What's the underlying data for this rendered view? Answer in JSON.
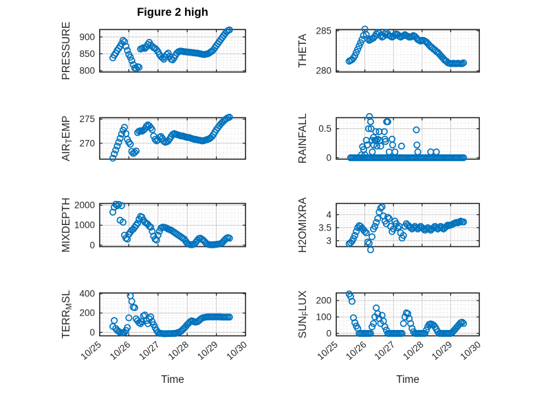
{
  "figure": {
    "title": "Figure 2 high",
    "xlabel": "Time",
    "marker_color": "#0072BD",
    "axis_color": "#1a1a1a",
    "label_color": "#262626",
    "grid_major_color": "#cccccc",
    "grid_minor_color": "#d9d9d9",
    "x_axis": {
      "lim": [
        0,
        5
      ],
      "tick_labels": [
        "10/25",
        "10/26",
        "10/27",
        "10/28",
        "10/29",
        "10/30"
      ],
      "ticks": [
        0,
        1,
        2,
        3,
        4,
        5
      ],
      "minor_step": 0.125,
      "tick_label_rotation_deg": -40
    }
  },
  "chart_data": [
    {
      "type": "scatter",
      "name": "PRESSURE",
      "row": 0,
      "col": 0,
      "ylabel_parts": [
        {
          "text": "PRESSURE",
          "sub": false
        }
      ],
      "ytick_labels": [
        "800",
        "850",
        "900"
      ],
      "yticks": [
        800,
        850,
        900
      ],
      "ylim": [
        796,
        922
      ],
      "y_minor_step": 10,
      "x_start": 0.45,
      "x_step": 0.05,
      "values": [
        838,
        846,
        852,
        860,
        866,
        872,
        880,
        890,
        886,
        872,
        860,
        848,
        840,
        830,
        818,
        808,
        806,
        812,
        810,
        864,
        866,
        868,
        866,
        870,
        878,
        884,
        876,
        872,
        868,
        866,
        862,
        856,
        848,
        842,
        838,
        834,
        840,
        848,
        852,
        842,
        834,
        832,
        838,
        846,
        852,
        856,
        858,
        858,
        857,
        856,
        856,
        855,
        855,
        854,
        854,
        853,
        853,
        852,
        852,
        851,
        850,
        849,
        848,
        848,
        849,
        850,
        852,
        855,
        858,
        862,
        868,
        874,
        880,
        886,
        892,
        898,
        904,
        910,
        915,
        919,
        921
      ]
    },
    {
      "type": "scatter",
      "name": "THETA",
      "row": 0,
      "col": 1,
      "ylabel_parts": [
        {
          "text": "THETA",
          "sub": false
        }
      ],
      "ytick_labels": [
        "280",
        "285"
      ],
      "yticks": [
        280,
        285
      ],
      "ylim": [
        279.85,
        285.15
      ],
      "y_minor_step": 1,
      "x_start": 0.45,
      "x_step": 0.05,
      "values": [
        281.2,
        281.3,
        281.4,
        281.6,
        281.9,
        282.3,
        282.7,
        283.1,
        283.5,
        283.9,
        284.4,
        285.2,
        284.5,
        284.0,
        283.8,
        283.9,
        284.0,
        284.1,
        284.3,
        284.6,
        284.8,
        284.7,
        284.4,
        284.2,
        284.3,
        284.6,
        284.8,
        284.6,
        284.4,
        284.3,
        284.2,
        284.3,
        284.5,
        284.6,
        284.5,
        284.3,
        284.2,
        284.3,
        284.4,
        284.5,
        284.4,
        284.3,
        284.2,
        284.2,
        284.3,
        284.4,
        284.3,
        284.1,
        283.9,
        283.8,
        283.7,
        283.8,
        283.8,
        283.7,
        283.6,
        283.4,
        283.2,
        283.0,
        282.9,
        282.7,
        282.6,
        282.4,
        282.3,
        282.1,
        281.9,
        281.7,
        281.5,
        281.3,
        281.2,
        281.0,
        280.95,
        280.9,
        280.9,
        280.95,
        280.9,
        280.9,
        280.95,
        280.9,
        280.9,
        280.9,
        281.0
      ]
    },
    {
      "type": "scatter",
      "name": "AIR_TEMP",
      "row": 1,
      "col": 0,
      "ylabel_parts": [
        {
          "text": "AIR",
          "sub": false
        },
        {
          "text": "T",
          "sub": true
        },
        {
          "text": "EMP",
          "sub": false
        }
      ],
      "ytick_labels": [
        "270",
        "275"
      ],
      "yticks": [
        270,
        275
      ],
      "ylim": [
        266.7,
        275.3
      ],
      "y_minor_step": 1,
      "x_start": 0.45,
      "x_step": 0.05,
      "values": [
        266.9,
        267.8,
        268.6,
        269.4,
        270.2,
        271.0,
        271.9,
        272.7,
        273.3,
        272.0,
        270.8,
        270.2,
        269.8,
        268.3,
        267.9,
        268.1,
        268.4,
        272.2,
        272.5,
        272.6,
        272.5,
        272.7,
        273.0,
        273.5,
        273.8,
        273.6,
        273.2,
        272.8,
        271.5,
        270.8,
        270.5,
        270.7,
        271.2,
        271.4,
        271.0,
        270.4,
        270.2,
        270.3,
        270.5,
        270.9,
        271.4,
        271.8,
        272.0,
        271.9,
        271.8,
        271.7,
        271.6,
        271.5,
        271.5,
        271.4,
        271.3,
        271.2,
        271.2,
        271.1,
        271.0,
        270.9,
        270.8,
        270.8,
        270.7,
        270.6,
        270.6,
        270.5,
        270.5,
        270.6,
        270.7,
        270.8,
        270.9,
        271.1,
        271.4,
        271.8,
        272.3,
        272.8,
        273.2,
        273.6,
        274.0,
        274.3,
        274.6,
        274.9,
        275.1,
        275.3,
        275.4
      ]
    },
    {
      "type": "scatter",
      "name": "RAINFALL",
      "row": 1,
      "col": 1,
      "ylabel_parts": [
        {
          "text": "RAINFALL",
          "sub": false
        }
      ],
      "ytick_labels": [
        "0",
        "0.5"
      ],
      "yticks": [
        0,
        0.5
      ],
      "ylim": [
        -0.025,
        0.69
      ],
      "y_minor_step": 0.1,
      "x_start": 0.5,
      "x_step": 0.05,
      "values": [
        0,
        0,
        0,
        0,
        0,
        0,
        0,
        0,
        0,
        0,
        0,
        0,
        0,
        0,
        0,
        0,
        0,
        0,
        0,
        0,
        0,
        0,
        0,
        0,
        0,
        0,
        0,
        0,
        0,
        0,
        0,
        0,
        0,
        0,
        0,
        0,
        0,
        0,
        0,
        0,
        0,
        0,
        0,
        0,
        0,
        0,
        0,
        0,
        0,
        0,
        0,
        0,
        0,
        0,
        0,
        0,
        0,
        0,
        0,
        0,
        0,
        0,
        0,
        0,
        0,
        0,
        0,
        0,
        0,
        0,
        0,
        0,
        0,
        0,
        0,
        0,
        0,
        0,
        0,
        0
      ],
      "extra_points": [
        [
          0.88,
          0.05
        ],
        [
          0.92,
          0.19
        ],
        [
          0.96,
          0.14
        ],
        [
          1.0,
          0.05
        ],
        [
          1.05,
          0.3
        ],
        [
          1.08,
          0.22
        ],
        [
          1.13,
          0.5
        ],
        [
          1.16,
          0.71
        ],
        [
          1.2,
          0.62
        ],
        [
          1.22,
          0.5
        ],
        [
          1.25,
          0.3
        ],
        [
          1.26,
          0.1
        ],
        [
          1.3,
          0.35
        ],
        [
          1.31,
          0.22
        ],
        [
          1.35,
          0.3
        ],
        [
          1.38,
          0.45
        ],
        [
          1.4,
          0.3
        ],
        [
          1.42,
          0.2
        ],
        [
          1.45,
          0.32
        ],
        [
          1.5,
          0.45
        ],
        [
          1.52,
          0.3
        ],
        [
          1.55,
          0.2
        ],
        [
          1.68,
          0.45
        ],
        [
          1.7,
          0.32
        ],
        [
          1.72,
          0.28
        ],
        [
          1.76,
          0.62
        ],
        [
          1.8,
          0.62
        ],
        [
          1.85,
          0.1
        ],
        [
          1.95,
          0.32
        ],
        [
          1.97,
          0.22
        ],
        [
          2.05,
          0.1
        ],
        [
          2.28,
          0.2
        ],
        [
          2.8,
          0.48
        ],
        [
          2.82,
          0.22
        ],
        [
          2.85,
          0.1
        ],
        [
          3.3,
          0.1
        ],
        [
          3.5,
          0.1
        ]
      ]
    },
    {
      "type": "scatter",
      "name": "MIXDEPTH",
      "row": 2,
      "col": 0,
      "ylabel_parts": [
        {
          "text": "MIXDEPTH",
          "sub": false
        }
      ],
      "ytick_labels": [
        "0",
        "1000",
        "2000"
      ],
      "yticks": [
        0,
        1000,
        2000
      ],
      "ylim": [
        -75,
        2090
      ],
      "y_minor_step": 200,
      "x_start": 0.45,
      "x_step": 0.05,
      "values": [
        1650,
        1900,
        2050,
        1975,
        2040,
        1250,
        1980,
        1150,
        500,
        350,
        300,
        550,
        650,
        750,
        800,
        900,
        1000,
        1100,
        1300,
        1440,
        1400,
        1250,
        1150,
        1100,
        1050,
        950,
        900,
        700,
        450,
        300,
        250,
        500,
        700,
        850,
        900,
        900,
        880,
        850,
        800,
        780,
        750,
        700,
        650,
        600,
        550,
        500,
        450,
        400,
        350,
        300,
        200,
        100,
        50,
        30,
        20,
        30,
        60,
        150,
        250,
        330,
        350,
        300,
        250,
        180,
        100,
        50,
        30,
        20,
        20,
        20,
        30,
        40,
        50,
        60,
        80,
        120,
        200,
        280,
        350,
        380,
        350
      ]
    },
    {
      "type": "scatter",
      "name": "H2OMIXRA",
      "row": 2,
      "col": 1,
      "ylabel_parts": [
        {
          "text": "H2OMIXRA",
          "sub": false
        }
      ],
      "ytick_labels": [
        "3",
        "3.5",
        "4"
      ],
      "yticks": [
        3,
        3.5,
        4
      ],
      "ylim": [
        2.77,
        4.43
      ],
      "y_minor_step": 0.1,
      "x_start": 0.45,
      "x_step": 0.05,
      "values": [
        2.88,
        2.92,
        2.98,
        3.08,
        3.2,
        3.35,
        3.5,
        3.58,
        3.55,
        3.48,
        3.42,
        3.35,
        3.3,
        2.95,
        2.9,
        2.65,
        3.15,
        3.45,
        3.55,
        3.7,
        3.85,
        4.1,
        4.25,
        4.3,
        3.95,
        3.75,
        3.65,
        3.9,
        3.85,
        3.55,
        3.35,
        3.45,
        3.75,
        3.65,
        3.5,
        3.55,
        3.3,
        3.1,
        3.2,
        3.55,
        3.65,
        3.6,
        3.55,
        3.5,
        3.45,
        3.5,
        3.55,
        3.5,
        3.45,
        3.5,
        3.55,
        3.5,
        3.45,
        3.4,
        3.45,
        3.5,
        3.45,
        3.4,
        3.45,
        3.5,
        3.55,
        3.5,
        3.45,
        3.5,
        3.55,
        3.5,
        3.45,
        3.5,
        3.55,
        3.6,
        3.58,
        3.6,
        3.62,
        3.65,
        3.68,
        3.7,
        3.68,
        3.72,
        3.75,
        3.72,
        3.72
      ]
    },
    {
      "type": "scatter",
      "name": "TERR_MSL",
      "row": 3,
      "col": 0,
      "ylabel_parts": [
        {
          "text": "TERR",
          "sub": false
        },
        {
          "text": "M",
          "sub": true
        },
        {
          "text": "SL",
          "sub": false
        }
      ],
      "ytick_labels": [
        "0",
        "200",
        "400"
      ],
      "yticks": [
        0,
        200,
        400
      ],
      "ylim": [
        -36,
        407
      ],
      "y_minor_step": 50,
      "x_start": 0.45,
      "x_step": 0.05,
      "values": [
        60,
        122,
        40,
        20,
        10,
        0,
        -5,
        -5,
        0,
        20,
        50,
        150,
        377,
        320,
        260,
        255,
        140,
        120,
        100,
        90,
        110,
        170,
        180,
        120,
        90,
        140,
        160,
        110,
        80,
        50,
        20,
        0,
        -10,
        -10,
        -12,
        -14,
        -14,
        -13,
        -13,
        -12,
        -12,
        -12,
        -11,
        -10,
        -5,
        0,
        5,
        15,
        30,
        45,
        60,
        80,
        95,
        110,
        120,
        115,
        108,
        105,
        110,
        120,
        135,
        145,
        152,
        155,
        158,
        160,
        160,
        160,
        160,
        160,
        160,
        160,
        160,
        160,
        160,
        158,
        158,
        158,
        158,
        158,
        158
      ]
    },
    {
      "type": "scatter",
      "name": "SUN_FLUX",
      "row": 3,
      "col": 1,
      "ylabel_parts": [
        {
          "text": "SUN",
          "sub": false
        },
        {
          "text": "F",
          "sub": true
        },
        {
          "text": "LUX",
          "sub": false
        }
      ],
      "ytick_labels": [
        "0",
        "100",
        "200"
      ],
      "yticks": [
        0,
        100,
        200
      ],
      "ylim": [
        -15,
        246
      ],
      "y_minor_step": 25,
      "x_start": 0.45,
      "x_step": 0.05,
      "values": [
        240,
        225,
        195,
        95,
        65,
        45,
        30,
        0,
        0,
        0,
        0,
        0,
        0,
        0,
        0,
        0,
        40,
        60,
        100,
        155,
        120,
        90,
        60,
        110,
        75,
        40,
        20,
        0,
        0,
        0,
        0,
        0,
        0,
        0,
        0,
        0,
        0,
        0,
        60,
        100,
        125,
        120,
        90,
        60,
        30,
        10,
        0,
        0,
        0,
        0,
        0,
        0,
        0,
        0,
        20,
        40,
        55,
        58,
        55,
        50,
        40,
        25,
        10,
        0,
        0,
        0,
        0,
        0,
        0,
        0,
        0,
        0,
        5,
        15,
        25,
        35,
        45,
        55,
        65,
        68,
        60
      ]
    }
  ]
}
